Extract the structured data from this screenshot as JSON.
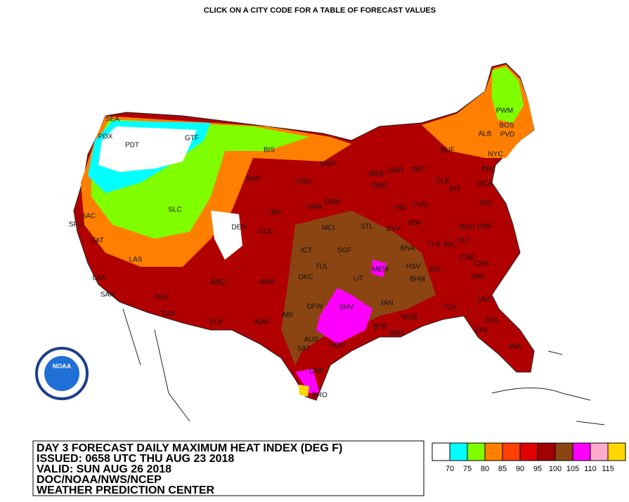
{
  "header": "CLICK ON A CITY CODE FOR A TABLE OF FORECAST VALUES",
  "logo": "NOAA",
  "title_lines": [
    "DAY 3 FORECAST DAILY MAXIMUM HEAT INDEX (DEG F)",
    "ISSUED: 0658 UTC THU AUG 23 2018",
    "VALID: SUN AUG 26 2018",
    "DOC/NOAA/NWS/NCEP",
    "WEATHER PREDICTION CENTER"
  ],
  "legend": {
    "colors": [
      "#ffffff",
      "#00ffff",
      "#80ff00",
      "#ff8000",
      "#ff4000",
      "#e00000",
      "#a00000",
      "#8b4513",
      "#ff00ff",
      "#ffaacc",
      "#ffd700"
    ],
    "labels": [
      70,
      75,
      80,
      85,
      90,
      95,
      100,
      105,
      110,
      115
    ]
  },
  "cities": [
    "SEA",
    "PDX",
    "PDT",
    "GTF",
    "BIS",
    "MSP",
    "MKE",
    "ORD",
    "GRR",
    "DET",
    "BUF",
    "ALB",
    "PWM",
    "BOS",
    "PVD",
    "NYC",
    "PHL",
    "DCA",
    "RIC",
    "CLE",
    "PIT",
    "IND",
    "CVG",
    "SDF",
    "EVV",
    "STL",
    "RAP",
    "FSD",
    "DSM",
    "OMA",
    "LBF",
    "DEN",
    "GLD",
    "MCI",
    "ICT",
    "SGF",
    "BNA",
    "TYS",
    "AVL",
    "CLT",
    "RDU",
    "ORF",
    "CAE",
    "CHS",
    "SAV",
    "ATL",
    "HSV",
    "MEM",
    "BHM",
    "LIT",
    "TUL",
    "OKC",
    "AMA",
    "ABQ",
    "LAS",
    "SLC",
    "SAC",
    "SFO",
    "FAT",
    "LAX",
    "SAN",
    "PHX",
    "TUS",
    "ELP",
    "MAF",
    "ABI",
    "DFW",
    "SHV",
    "JAN",
    "MOB",
    "BTR",
    "MSY",
    "TLH",
    "JAX",
    "ORL",
    "TPA",
    "MIA",
    "AUS",
    "SAT",
    "HOU",
    "CRP",
    "BRO"
  ]
}
